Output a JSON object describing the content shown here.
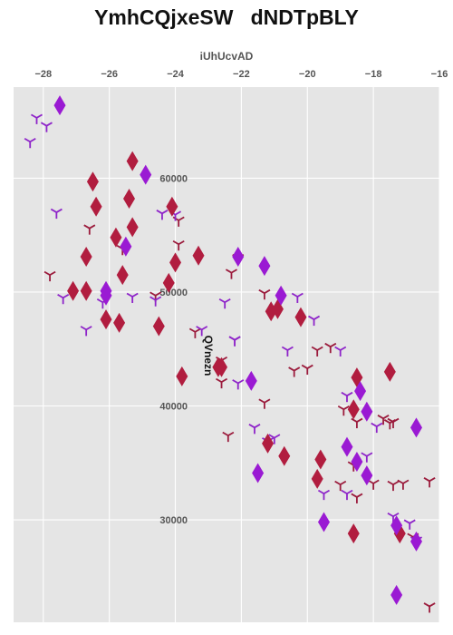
{
  "chart_data": {
    "type": "scatter",
    "title": "YmhCQjxeSW   dNDTpBLY",
    "xlabel": "iUhUcvAD",
    "ylabel": "QVnezn",
    "xlim": [
      -28.9,
      -16.0
    ],
    "ylim": [
      21000,
      68000
    ],
    "x_axis_position": "top",
    "x_ticks": [
      -28,
      -26,
      -24,
      -22,
      -20,
      -18,
      -16
    ],
    "y_ticks": [
      30000,
      40000,
      50000,
      60000
    ],
    "grid": true,
    "background": "#e5e5e5",
    "series": [
      {
        "marker": "tri_down",
        "color": "#9b1b3c",
        "x": [
          -27.8,
          -25.6,
          -23.9,
          -22.1,
          -22.3,
          -21.3,
          -20.4,
          -20.0,
          -19.7,
          -19.3,
          -18.9,
          -18.5,
          -18.6,
          -18.0,
          -17.4,
          -17.5,
          -17.1,
          -16.3,
          -19.0,
          -18.5,
          -16.8,
          -16.3,
          -23.9,
          -23.4,
          -24.6,
          -26.6,
          -22.6,
          -22.4,
          -21.3,
          -22.6,
          -17.7,
          -17.4
        ],
        "y": [
          51500,
          53800,
          56300,
          53000,
          51700,
          49900,
          43100,
          43300,
          44900,
          45200,
          39700,
          38600,
          34800,
          33200,
          33100,
          38500,
          33200,
          33400,
          33100,
          32000,
          28500,
          22400,
          54200,
          46500,
          49700,
          55600,
          42100,
          37400,
          40300,
          44000,
          38900,
          38600
        ],
        "marker_size": "small"
      },
      {
        "marker": "tri_down",
        "color": "#8e24c9",
        "x": [
          -28.2,
          -27.9,
          -28.4,
          -27.6,
          -27.4,
          -26.7,
          -26.2,
          -25.3,
          -24.6,
          -24.0,
          -22.5,
          -22.2,
          -21.6,
          -21.0,
          -20.6,
          -20.3,
          -19.8,
          -19.0,
          -18.8,
          -18.2,
          -17.9,
          -17.4,
          -18.8,
          -16.9,
          -16.7,
          -19.5,
          -21.2,
          -24.4,
          -23.2,
          -22.2,
          -22.1
        ],
        "y": [
          65300,
          64600,
          63200,
          57000,
          49500,
          46700,
          49100,
          49600,
          49300,
          56800,
          49100,
          45800,
          38100,
          37200,
          44900,
          49600,
          47600,
          44900,
          32300,
          35600,
          38200,
          30300,
          40900,
          29700,
          28200,
          32300,
          36900,
          56900,
          46700,
          45800,
          42000
        ],
        "marker_size": "small"
      },
      {
        "marker": "thin_diamond",
        "color": "#b11d3f",
        "x": [
          -25.3,
          -26.5,
          -26.4,
          -25.4,
          -25.3,
          -25.8,
          -26.7,
          -25.6,
          -27.1,
          -26.7,
          -24.1,
          -24.0,
          -24.2,
          -23.3,
          -26.1,
          -25.7,
          -24.5,
          -23.8,
          -22.7,
          -21.1,
          -20.9,
          -20.2,
          -18.5,
          -17.5,
          -18.6,
          -19.6,
          -19.7,
          -20.7,
          -21.2,
          -18.6,
          -17.2,
          -22.6
        ],
        "y": [
          61500,
          59700,
          57500,
          58200,
          55700,
          54800,
          53100,
          51500,
          50100,
          50100,
          57500,
          52600,
          50800,
          53200,
          47600,
          47300,
          47000,
          42600,
          43400,
          48300,
          48500,
          47800,
          42500,
          43000,
          39700,
          35300,
          33600,
          35600,
          36700,
          28800,
          28800,
          43400
        ],
        "marker_size": "large"
      },
      {
        "marker": "thin_diamond",
        "color": "#9a1ad3",
        "x": [
          -27.5,
          -24.9,
          -26.1,
          -26.1,
          -25.5,
          -22.1,
          -21.3,
          -20.8,
          -21.7,
          -21.5,
          -18.4,
          -18.2,
          -18.8,
          -18.5,
          -17.3,
          -16.7,
          -17.3,
          -16.7,
          -19.5,
          -18.2
        ],
        "y": [
          66400,
          60300,
          50100,
          49700,
          54000,
          53100,
          52300,
          49700,
          42200,
          34100,
          41300,
          39500,
          36400,
          35100,
          29500,
          38100,
          23400,
          28100,
          29800,
          33900
        ],
        "marker_size": "large"
      }
    ]
  }
}
